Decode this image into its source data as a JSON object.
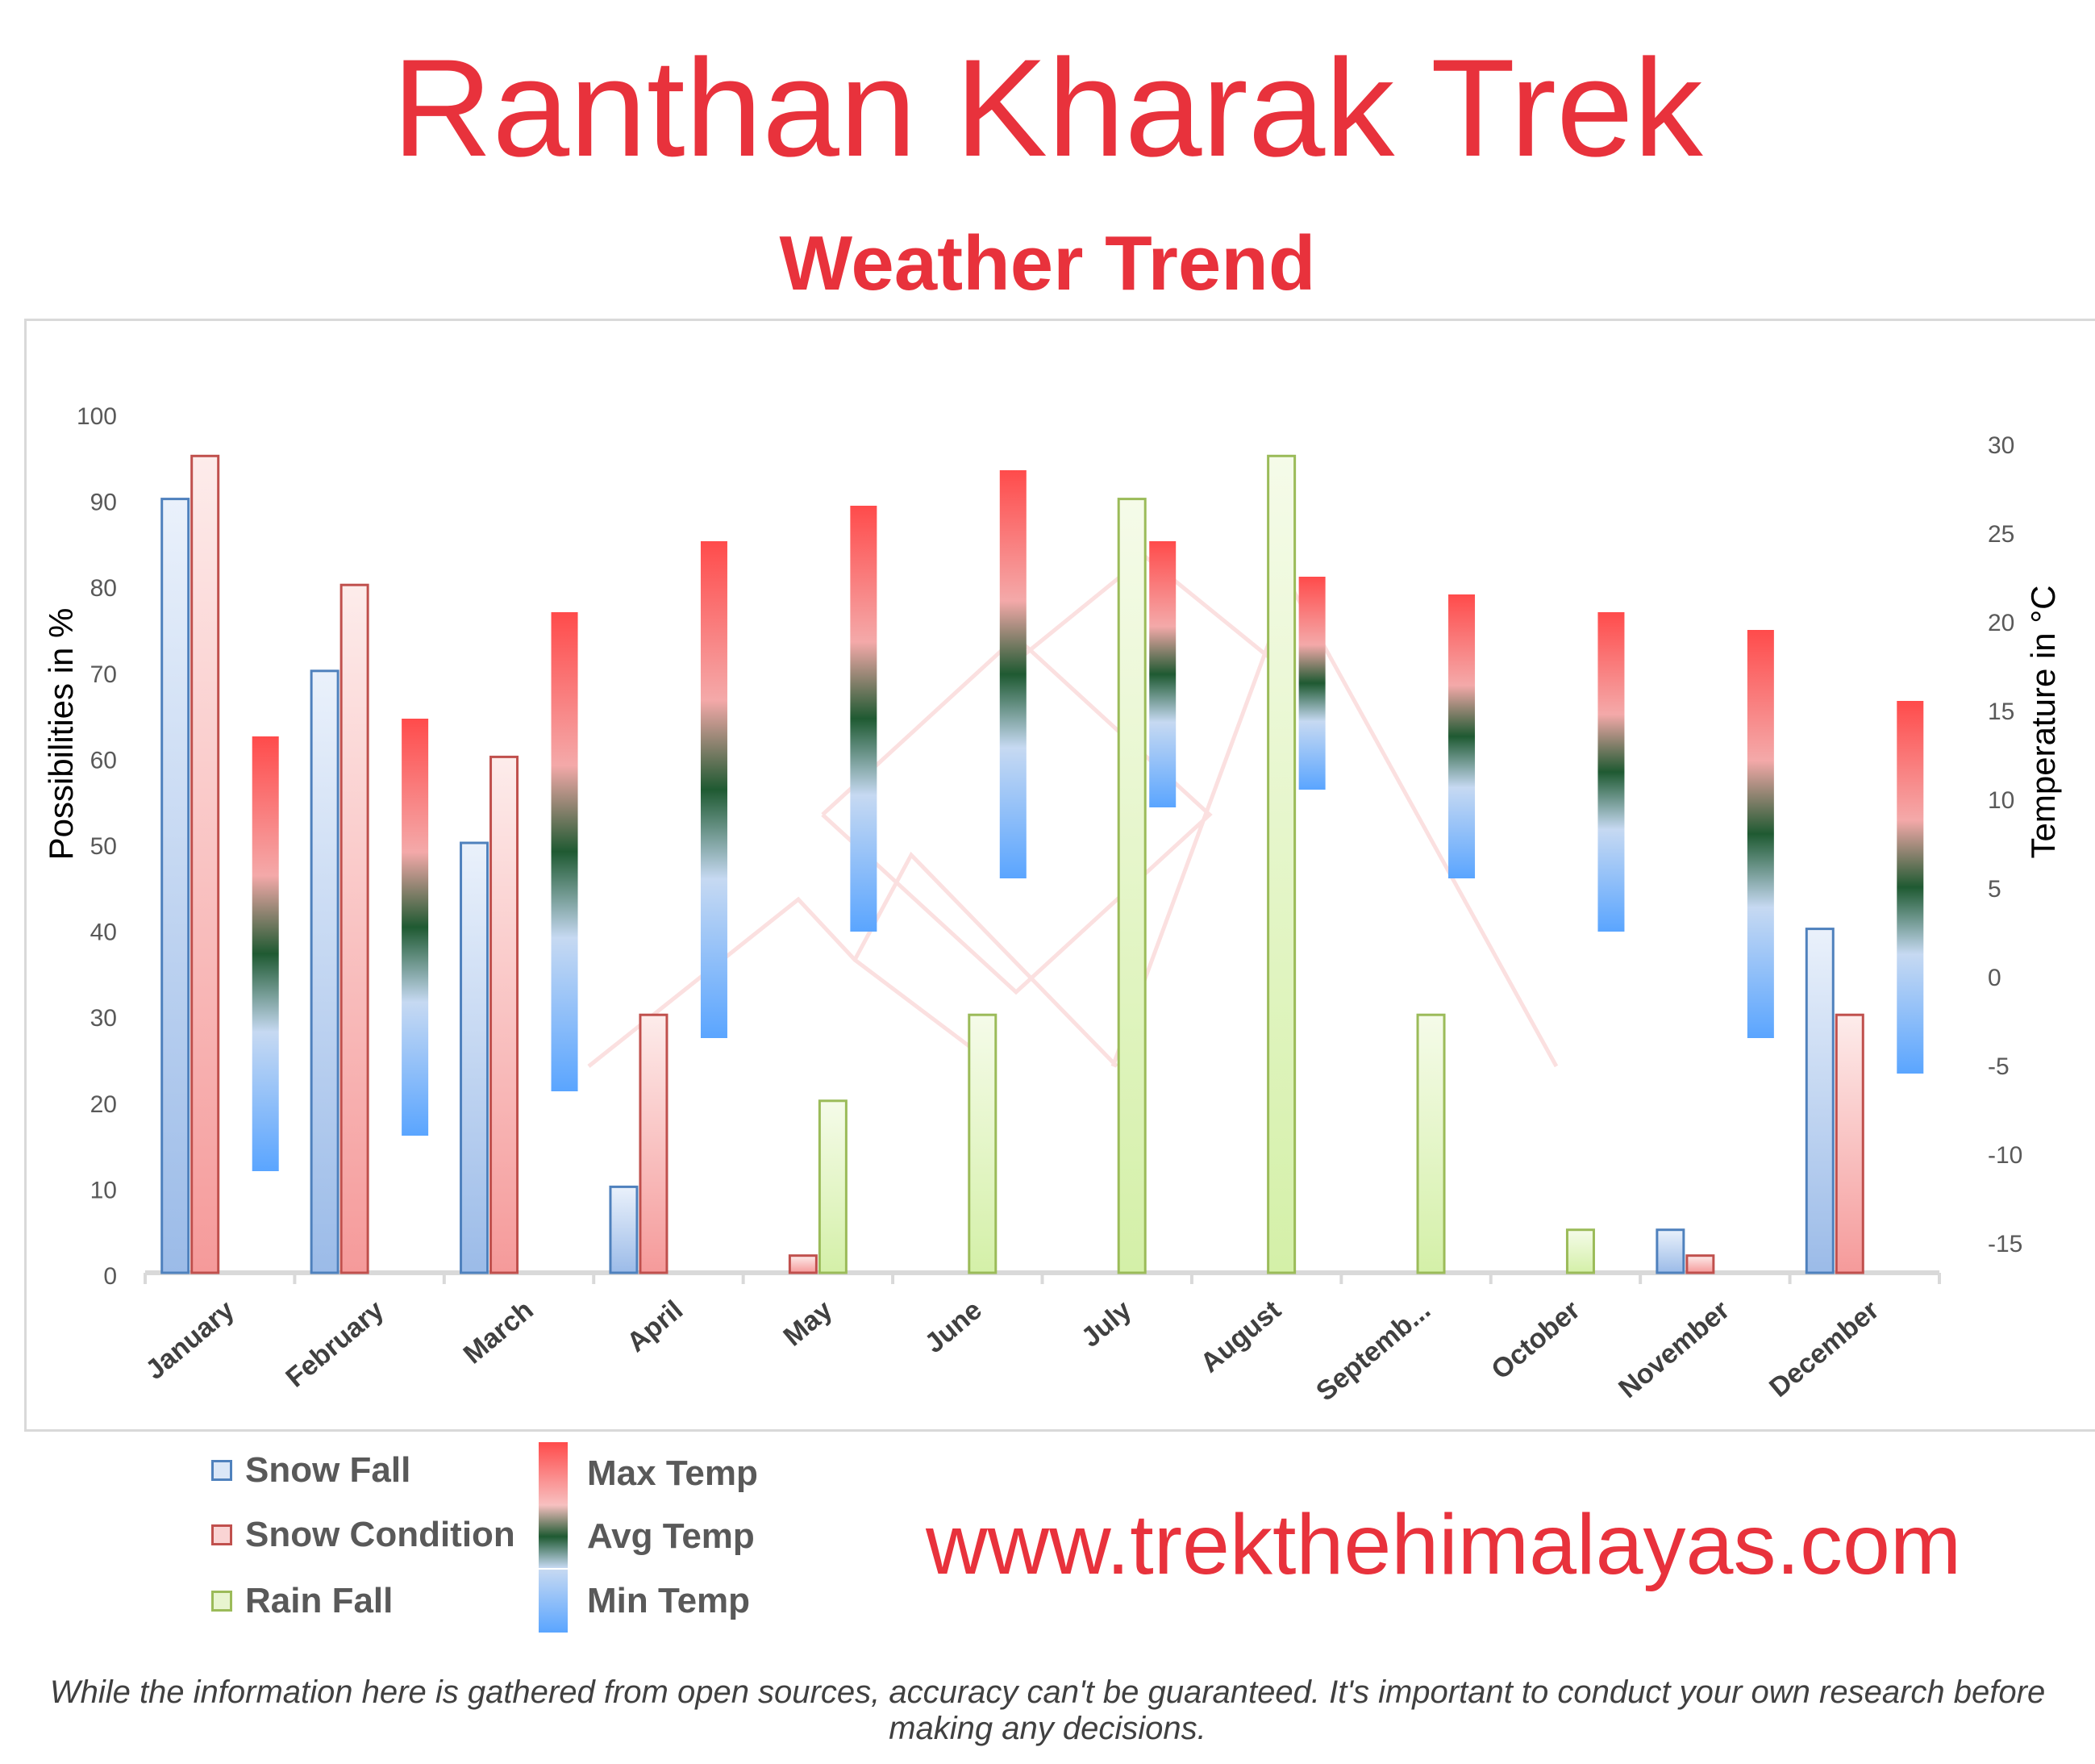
{
  "title": "Ranthan Kharak Trek",
  "subtitle": "Weather Trend",
  "website": "www.trekthehimalayas.com",
  "disclaimer": "While the information here is gathered from open sources, accuracy can't be guaranteed. It's important to conduct your own research before making any decisions.",
  "legend": {
    "snow_fall": "Snow Fall",
    "snow_condition": "Snow Condition",
    "rain_fall": "Rain Fall",
    "max_temp": "Max Temp",
    "avg_temp": "Avg Temp",
    "min_temp": "Min Temp"
  },
  "colors": {
    "title": "#e8323c",
    "snow_fall": "#4f81bd",
    "snow_condition": "#c0504d",
    "rain_fall": "#9bbb59",
    "max_temp": "#ff4b4b",
    "avg_temp": "#1f5a32",
    "min_temp": "#5aa5ff"
  },
  "chart_data": {
    "type": "bar",
    "categories": [
      "January",
      "February",
      "March",
      "April",
      "May",
      "June",
      "July",
      "August",
      "Septemb...",
      "October",
      "November",
      "December"
    ],
    "ylabel": "Possibilities in %",
    "y2label": "Temperature in °C",
    "ylim": [
      0,
      100
    ],
    "y2lim": [
      -17,
      30
    ],
    "yticks": [
      0,
      10,
      20,
      30,
      40,
      50,
      60,
      70,
      80,
      90,
      100
    ],
    "y2ticks": [
      -15,
      -10,
      -5,
      0,
      5,
      10,
      15,
      20,
      25,
      30
    ],
    "series": [
      {
        "name": "Snow Fall",
        "axis": "left",
        "values": [
          90,
          70,
          50,
          10,
          0,
          0,
          0,
          0,
          0,
          0,
          5,
          40
        ]
      },
      {
        "name": "Snow Condition",
        "axis": "left",
        "values": [
          95,
          80,
          60,
          30,
          2,
          0,
          0,
          0,
          0,
          0,
          2,
          30
        ]
      },
      {
        "name": "Rain Fall",
        "axis": "left",
        "values": [
          0,
          0,
          0,
          0,
          20,
          30,
          90,
          95,
          30,
          5,
          0,
          0
        ]
      },
      {
        "name": "Min Temp",
        "axis": "right",
        "values": [
          -11,
          -9,
          -6.5,
          -3.5,
          2.5,
          5.5,
          9.5,
          10.5,
          5.5,
          2.5,
          -3.5,
          -5.5
        ]
      },
      {
        "name": "Max Temp",
        "axis": "right",
        "values": [
          13.5,
          14.5,
          20.5,
          24.5,
          26.5,
          28.5,
          24.5,
          22.5,
          21.5,
          20.5,
          19.5,
          15.5
        ]
      }
    ],
    "grid": false,
    "legend_position": "bottom-left"
  }
}
